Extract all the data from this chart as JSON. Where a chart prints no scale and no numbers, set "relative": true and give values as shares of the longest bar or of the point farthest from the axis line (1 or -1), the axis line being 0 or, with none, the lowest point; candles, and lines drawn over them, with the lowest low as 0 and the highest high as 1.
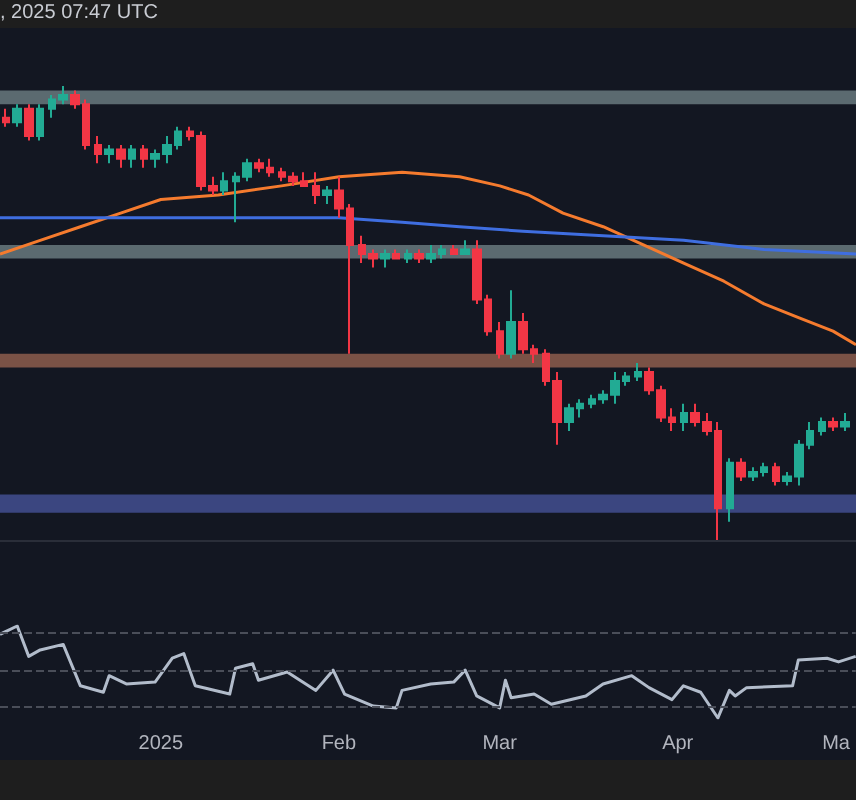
{
  "chart_data": [
    {
      "type": "candlestick",
      "title": ", 2025 07:47 UTC",
      "relative": true,
      "tick_labels": false,
      "xlim": [
        "2024-12-04",
        "2025-05-02"
      ],
      "xticks": [
        {
          "value": "2025-01-01",
          "label": null
        },
        {
          "value": "2025-02-01",
          "label": null
        },
        {
          "value": "2025-03-01",
          "label": null
        },
        {
          "value": "2025-04-01",
          "label": null
        },
        {
          "value": "2025-05-01",
          "label": null
        }
      ],
      "x": [
        "2024-12-05",
        "2024-12-07",
        "2024-12-09",
        "2024-12-11",
        "2024-12-13",
        "2024-12-15",
        "2024-12-17",
        "2024-12-19",
        "2024-12-21",
        "2024-12-23",
        "2024-12-25",
        "2024-12-27",
        "2024-12-29",
        "2024-12-31",
        "2025-01-02",
        "2025-01-04",
        "2025-01-06",
        "2025-01-08",
        "2025-01-10",
        "2025-01-12",
        "2025-01-14",
        "2025-01-16",
        "2025-01-18",
        "2025-01-20",
        "2025-01-22",
        "2025-01-24",
        "2025-01-26",
        "2025-01-28",
        "2025-01-30",
        "2025-02-01",
        "2025-02-03",
        "2025-02-05",
        "2025-02-07",
        "2025-02-09",
        "2025-02-11",
        "2025-02-13",
        "2025-02-15",
        "2025-02-17",
        "2025-02-19",
        "2025-02-21",
        "2025-02-23",
        "2025-02-25",
        "2025-02-27",
        "2025-03-01",
        "2025-03-03",
        "2025-03-05",
        "2025-03-07",
        "2025-03-09",
        "2025-03-11",
        "2025-03-13",
        "2025-03-15",
        "2025-03-17",
        "2025-03-19",
        "2025-03-21",
        "2025-03-23",
        "2025-03-25",
        "2025-03-27",
        "2025-03-29",
        "2025-03-31",
        "2025-04-02",
        "2025-04-04",
        "2025-04-06",
        "2025-04-08",
        "2025-04-10",
        "2025-04-12",
        "2025-04-14",
        "2025-04-16",
        "2025-04-18",
        "2025-04-20",
        "2025-04-22",
        "2025-04-24",
        "2025-04-26",
        "2025-04-28",
        "2025-04-30"
      ],
      "ohlc": [
        [
          0.93,
          0.95,
          0.91,
          0.92
        ],
        [
          0.92,
          0.96,
          0.91,
          0.95
        ],
        [
          0.95,
          0.96,
          0.88,
          0.89
        ],
        [
          0.89,
          0.96,
          0.88,
          0.95
        ],
        [
          0.95,
          0.98,
          0.93,
          0.97
        ],
        [
          0.97,
          1.0,
          0.96,
          0.98
        ],
        [
          0.98,
          0.99,
          0.95,
          0.96
        ],
        [
          0.96,
          0.97,
          0.86,
          0.87
        ],
        [
          0.87,
          0.89,
          0.83,
          0.85
        ],
        [
          0.85,
          0.87,
          0.83,
          0.86
        ],
        [
          0.86,
          0.87,
          0.82,
          0.84
        ],
        [
          0.84,
          0.87,
          0.82,
          0.86
        ],
        [
          0.86,
          0.87,
          0.82,
          0.84
        ],
        [
          0.84,
          0.86,
          0.82,
          0.85
        ],
        [
          0.85,
          0.89,
          0.83,
          0.87
        ],
        [
          0.87,
          0.91,
          0.86,
          0.9
        ],
        [
          0.9,
          0.91,
          0.88,
          0.89
        ],
        [
          0.89,
          0.9,
          0.77,
          0.78
        ],
        [
          0.78,
          0.8,
          0.76,
          0.77
        ],
        [
          0.77,
          0.81,
          0.76,
          0.79
        ],
        [
          0.79,
          0.81,
          0.7,
          0.8
        ],
        [
          0.8,
          0.84,
          0.79,
          0.83
        ],
        [
          0.83,
          0.84,
          0.81,
          0.82
        ],
        [
          0.82,
          0.84,
          0.8,
          0.81
        ],
        [
          0.81,
          0.82,
          0.79,
          0.8
        ],
        [
          0.8,
          0.81,
          0.78,
          0.79
        ],
        [
          0.79,
          0.81,
          0.78,
          0.78
        ],
        [
          0.78,
          0.81,
          0.74,
          0.76
        ],
        [
          0.76,
          0.78,
          0.74,
          0.77
        ],
        [
          0.77,
          0.8,
          0.71,
          0.73
        ],
        [
          0.73,
          0.74,
          0.41,
          0.65
        ],
        [
          0.65,
          0.67,
          0.61,
          0.63
        ],
        [
          0.63,
          0.64,
          0.6,
          0.62
        ],
        [
          0.62,
          0.64,
          0.6,
          0.63
        ],
        [
          0.63,
          0.64,
          0.62,
          0.62
        ],
        [
          0.62,
          0.64,
          0.61,
          0.63
        ],
        [
          0.63,
          0.64,
          0.61,
          0.62
        ],
        [
          0.62,
          0.65,
          0.61,
          0.63
        ],
        [
          0.63,
          0.65,
          0.62,
          0.64
        ],
        [
          0.64,
          0.65,
          0.63,
          0.63
        ],
        [
          0.63,
          0.66,
          0.63,
          0.64
        ],
        [
          0.64,
          0.66,
          0.52,
          0.53
        ],
        [
          0.53,
          0.54,
          0.45,
          0.46
        ],
        [
          0.46,
          0.48,
          0.4,
          0.41
        ],
        [
          0.41,
          0.55,
          0.4,
          0.48
        ],
        [
          0.48,
          0.5,
          0.41,
          0.42
        ],
        [
          0.42,
          0.43,
          0.39,
          0.41
        ],
        [
          0.41,
          0.42,
          0.34,
          0.35
        ],
        [
          0.35,
          0.37,
          0.21,
          0.26
        ],
        [
          0.26,
          0.3,
          0.24,
          0.29
        ],
        [
          0.29,
          0.31,
          0.27,
          0.3
        ],
        [
          0.3,
          0.32,
          0.29,
          0.31
        ],
        [
          0.31,
          0.33,
          0.3,
          0.32
        ],
        [
          0.32,
          0.37,
          0.3,
          0.35
        ],
        [
          0.35,
          0.37,
          0.34,
          0.36
        ],
        [
          0.36,
          0.39,
          0.35,
          0.37
        ],
        [
          0.37,
          0.38,
          0.32,
          0.33
        ],
        [
          0.33,
          0.34,
          0.26,
          0.27
        ],
        [
          0.27,
          0.29,
          0.24,
          0.26
        ],
        [
          0.26,
          0.3,
          0.24,
          0.28
        ],
        [
          0.28,
          0.3,
          0.25,
          0.26
        ],
        [
          0.26,
          0.28,
          0.23,
          0.24
        ],
        [
          0.24,
          0.26,
          0.0,
          0.07
        ],
        [
          0.07,
          0.18,
          0.04,
          0.17
        ],
        [
          0.17,
          0.18,
          0.13,
          0.14
        ],
        [
          0.14,
          0.16,
          0.13,
          0.15
        ],
        [
          0.15,
          0.17,
          0.14,
          0.16
        ],
        [
          0.16,
          0.17,
          0.12,
          0.13
        ],
        [
          0.13,
          0.15,
          0.12,
          0.14
        ],
        [
          0.14,
          0.22,
          0.12,
          0.21
        ],
        [
          0.21,
          0.26,
          0.2,
          0.24
        ],
        [
          0.24,
          0.27,
          0.23,
          0.26
        ],
        [
          0.26,
          0.27,
          0.24,
          0.25
        ],
        [
          0.25,
          0.28,
          0.24,
          0.26
        ]
      ],
      "series": [
        {
          "type": "line",
          "color": "#f57b2e",
          "x": [
            "2024-12-04",
            "2024-12-11",
            "2024-12-18",
            "2024-12-25",
            "2025-01-01",
            "2025-01-11",
            "2025-01-22",
            "2025-02-01",
            "2025-02-12",
            "2025-02-22",
            "2025-03-01",
            "2025-03-06",
            "2025-03-12",
            "2025-03-19",
            "2025-03-26",
            "2025-04-02",
            "2025-04-09",
            "2025-04-16",
            "2025-04-22",
            "2025-04-28",
            "2025-05-02"
          ],
          "values": [
            0.63,
            0.66,
            0.69,
            0.72,
            0.75,
            0.76,
            0.78,
            0.8,
            0.81,
            0.8,
            0.78,
            0.76,
            0.72,
            0.69,
            0.65,
            0.61,
            0.57,
            0.52,
            0.49,
            0.46,
            0.43
          ]
        },
        {
          "type": "line",
          "color": "#3f6ee0",
          "x": [
            "2024-12-04",
            "2024-12-18",
            "2025-01-08",
            "2025-02-01",
            "2025-02-12",
            "2025-02-22",
            "2025-03-05",
            "2025-03-19",
            "2025-04-02",
            "2025-04-16",
            "2025-05-02"
          ],
          "values": [
            0.71,
            0.71,
            0.71,
            0.71,
            0.7,
            0.69,
            0.68,
            0.67,
            0.66,
            0.64,
            0.63
          ]
        }
      ],
      "bands": [
        {
          "axis": "y",
          "from": 0.96,
          "to": 0.99,
          "color": "#5b6a70"
        },
        {
          "axis": "y",
          "from": 0.62,
          "to": 0.65,
          "color": "#5b6a70"
        },
        {
          "axis": "y",
          "from": 0.38,
          "to": 0.41,
          "color": "#7a5246"
        },
        {
          "axis": "y",
          "from": 0.06,
          "to": 0.1,
          "color": "#3b4680"
        }
      ]
    },
    {
      "type": "line",
      "relative": true,
      "tick_labels": "x",
      "color": "#b2bccb",
      "xlim": [
        "2024-12-04",
        "2025-05-02"
      ],
      "xticks": [
        {
          "value": "2025-01-01",
          "label": "2025"
        },
        {
          "value": "2025-02-01",
          "label": "Feb"
        },
        {
          "value": "2025-03-01",
          "label": "Mar"
        },
        {
          "value": "2025-04-01",
          "label": "Apr"
        },
        {
          "value": "2025-05-01",
          "label": "Ma"
        }
      ],
      "x": [
        "2024-12-04",
        "2024-12-07",
        "2024-12-09",
        "2024-12-11",
        "2024-12-15",
        "2024-12-18",
        "2024-12-22",
        "2024-12-23",
        "2024-12-26",
        "2024-12-31",
        "2025-01-03",
        "2025-01-05",
        "2025-01-07",
        "2025-01-13",
        "2025-01-14",
        "2025-01-17",
        "2025-01-18",
        "2025-01-23",
        "2025-01-28",
        "2025-01-31",
        "2025-02-02",
        "2025-02-07",
        "2025-02-11",
        "2025-02-12",
        "2025-02-17",
        "2025-02-21",
        "2025-02-23",
        "2025-02-25",
        "2025-03-01",
        "2025-03-02",
        "2025-03-03",
        "2025-03-07",
        "2025-03-10",
        "2025-03-16",
        "2025-03-19",
        "2025-03-24",
        "2025-03-27",
        "2025-03-31",
        "2025-04-02",
        "2025-04-05",
        "2025-04-08",
        "2025-04-10",
        "2025-04-11",
        "2025-04-13",
        "2025-04-21",
        "2025-04-22",
        "2025-04-27",
        "2025-04-29",
        "2025-05-02"
      ],
      "values": [
        0.91,
        1.0,
        0.67,
        0.74,
        0.8,
        0.35,
        0.28,
        0.46,
        0.37,
        0.39,
        0.65,
        0.7,
        0.35,
        0.26,
        0.54,
        0.59,
        0.41,
        0.5,
        0.3,
        0.52,
        0.26,
        0.13,
        0.11,
        0.3,
        0.37,
        0.39,
        0.52,
        0.24,
        0.11,
        0.41,
        0.22,
        0.26,
        0.15,
        0.24,
        0.37,
        0.46,
        0.33,
        0.2,
        0.35,
        0.28,
        0.0,
        0.3,
        0.24,
        0.33,
        0.35,
        0.63,
        0.65,
        0.61,
        0.67
      ],
      "ref_lines": [
        {
          "axis": "y",
          "value": 0.93,
          "line_style": "dashed",
          "color": "#4a4e59"
        },
        {
          "axis": "y",
          "value": 0.52,
          "line_style": "dashed",
          "color": "#4a4e59"
        },
        {
          "axis": "y",
          "value": 0.13,
          "line_style": "dashed",
          "color": "#4a4e59"
        }
      ]
    }
  ]
}
